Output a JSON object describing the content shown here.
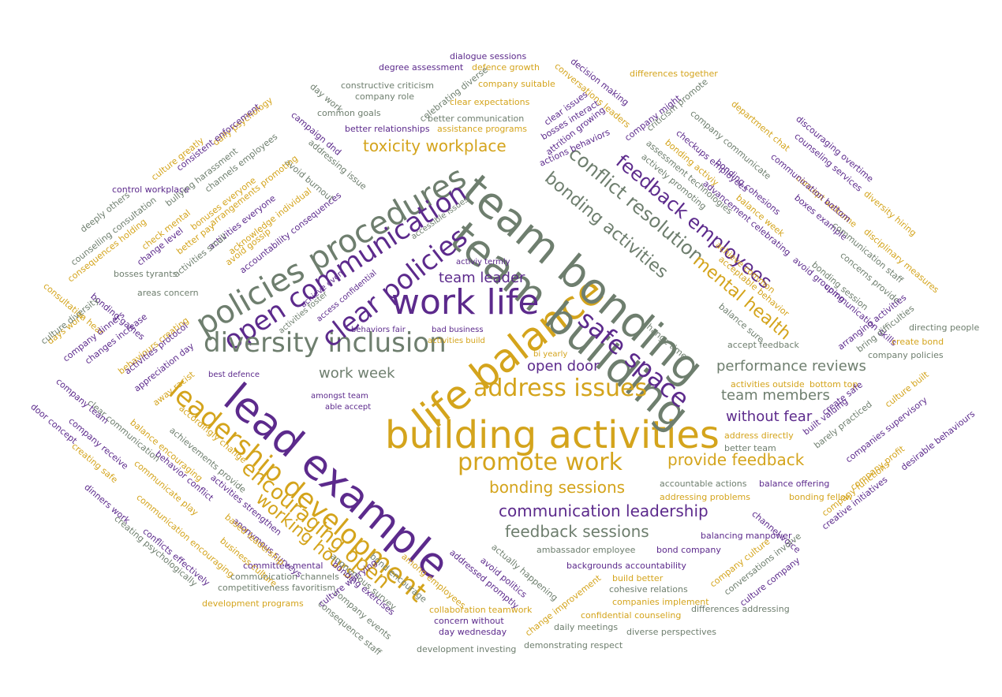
{
  "colors": {
    "gold": "#d4a41c",
    "purple": "#5c2a8c",
    "gray": "#6e7e6e"
  },
  "words": [
    {
      "text": "building activities",
      "color": "gold"
    },
    {
      "text": "lead example",
      "color": "purple"
    },
    {
      "text": "life balance",
      "color": "gold"
    },
    {
      "text": "team bonding",
      "color": "gray"
    },
    {
      "text": "team building",
      "color": "gray"
    },
    {
      "text": "work life",
      "color": "purple"
    },
    {
      "text": "leadership development",
      "color": "gold"
    },
    {
      "text": "policies procedures",
      "color": "gray"
    },
    {
      "text": "open communication",
      "color": "purple"
    },
    {
      "text": "diversity inclusion",
      "color": "gray"
    },
    {
      "text": "clear policies",
      "color": "purple"
    },
    {
      "text": "address issues",
      "color": "gold"
    },
    {
      "text": "safe space",
      "color": "purple"
    },
    {
      "text": "promote work",
      "color": "gold"
    },
    {
      "text": "encouraging open",
      "color": "gold"
    },
    {
      "text": "conflict resolution",
      "color": "gray"
    },
    {
      "text": "feedback employees",
      "color": "purple"
    },
    {
      "text": "working hours",
      "color": "gold"
    },
    {
      "text": "bonding activities",
      "color": "gray"
    },
    {
      "text": "toxicity workplace",
      "color": "gold"
    },
    {
      "text": "mental health",
      "color": "gold"
    },
    {
      "text": "performance reviews",
      "color": "gray"
    },
    {
      "text": "provide feedback",
      "color": "gold"
    },
    {
      "text": "communication leadership",
      "color": "purple"
    },
    {
      "text": "bonding sessions",
      "color": "gold"
    },
    {
      "text": "feedback sessions",
      "color": "gray"
    },
    {
      "text": "team members",
      "color": "gray"
    },
    {
      "text": "without fear",
      "color": "purple"
    },
    {
      "text": "open door",
      "color": "purple"
    },
    {
      "text": "work week",
      "color": "gray"
    },
    {
      "text": "team leader",
      "color": "purple"
    },
    {
      "text": "dialogue sessions",
      "color": "purple"
    },
    {
      "text": "degree assessment",
      "color": "purple"
    },
    {
      "text": "defence growth",
      "color": "gold"
    },
    {
      "text": "constructive criticism",
      "color": "gray"
    },
    {
      "text": "company suitable",
      "color": "gold"
    },
    {
      "text": "day work",
      "color": "gray"
    },
    {
      "text": "company role",
      "color": "gray"
    },
    {
      "text": "clear expectations",
      "color": "gold"
    },
    {
      "text": "common goals",
      "color": "gray"
    },
    {
      "text": "better communication",
      "color": "gray"
    },
    {
      "text": "better relationships",
      "color": "purple"
    },
    {
      "text": "assistance programs",
      "color": "gold"
    },
    {
      "text": "campaign dnd",
      "color": "purple"
    },
    {
      "text": "avoid burnout",
      "color": "gray"
    },
    {
      "text": "addressing issue",
      "color": "gray"
    },
    {
      "text": "celebrating diverse",
      "color": "gray"
    },
    {
      "text": "conversations leaders",
      "color": "gold"
    },
    {
      "text": "decision making",
      "color": "purple"
    },
    {
      "text": "differences together",
      "color": "gold"
    },
    {
      "text": "clear issues",
      "color": "purple"
    },
    {
      "text": "bosses interact",
      "color": "purple"
    },
    {
      "text": "attrition growing",
      "color": "purple"
    },
    {
      "text": "actions behaviors",
      "color": "purple"
    },
    {
      "text": "company might",
      "color": "purple"
    },
    {
      "text": "criticism promote",
      "color": "gray"
    },
    {
      "text": "department chat",
      "color": "gold"
    },
    {
      "text": "discouraging overtime",
      "color": "purple"
    },
    {
      "text": "counseling services",
      "color": "purple"
    },
    {
      "text": "diversity hiring",
      "color": "gold"
    },
    {
      "text": "concept welcome",
      "color": "gold"
    },
    {
      "text": "company communicate",
      "color": "gray"
    },
    {
      "text": "checkups employees",
      "color": "purple"
    },
    {
      "text": "communication bottom",
      "color": "purple"
    },
    {
      "text": "bonding activiy",
      "color": "gold"
    },
    {
      "text": "bonding cohesions",
      "color": "purple"
    },
    {
      "text": "assessment technologies",
      "color": "gray"
    },
    {
      "text": "actively promoting",
      "color": "gray"
    },
    {
      "text": "advancement celebrating",
      "color": "purple"
    },
    {
      "text": "balance week",
      "color": "gold"
    },
    {
      "text": "boxes example",
      "color": "purple"
    },
    {
      "text": "communication staff",
      "color": "gray"
    },
    {
      "text": "concerns provide",
      "color": "gray"
    },
    {
      "text": "disciplinary measures",
      "color": "gold"
    },
    {
      "text": "culture greatly",
      "color": "gold"
    },
    {
      "text": "daily psychology",
      "color": "gold"
    },
    {
      "text": "consistent enforcement",
      "color": "purple"
    },
    {
      "text": "channels employees",
      "color": "gray"
    },
    {
      "text": "control workplace",
      "color": "purple"
    },
    {
      "text": "bullying harassment",
      "color": "gray"
    },
    {
      "text": "deeply others",
      "color": "gray"
    },
    {
      "text": "counselling consultation",
      "color": "gray"
    },
    {
      "text": "check mental",
      "color": "gold"
    },
    {
      "text": "bonuses everyone",
      "color": "gold"
    },
    {
      "text": "arrangements promoting",
      "color": "gold"
    },
    {
      "text": "consequences holding",
      "color": "gold"
    },
    {
      "text": "change level",
      "color": "purple"
    },
    {
      "text": "better pay",
      "color": "gold"
    },
    {
      "text": "activities everyone",
      "color": "purple"
    },
    {
      "text": "acknowledge individual",
      "color": "gold"
    },
    {
      "text": "accountability consequences",
      "color": "purple"
    },
    {
      "text": "avoid gossip",
      "color": "gold"
    },
    {
      "text": "activities small",
      "color": "gray"
    },
    {
      "text": "bosses tyrants",
      "color": "gray"
    },
    {
      "text": "areas concern",
      "color": "gray"
    },
    {
      "text": "consultation hear",
      "color": "gold"
    },
    {
      "text": "bonding games",
      "color": "purple"
    },
    {
      "text": "days work",
      "color": "gold"
    },
    {
      "text": "culture diversity",
      "color": "gray"
    },
    {
      "text": "company dinners",
      "color": "purple"
    },
    {
      "text": "changes increase",
      "color": "purple"
    },
    {
      "text": "behaviours creating",
      "color": "gold"
    },
    {
      "text": "activities protocol",
      "color": "purple"
    },
    {
      "text": "appreciation day",
      "color": "purple"
    },
    {
      "text": "away racist",
      "color": "gold"
    },
    {
      "text": "achieve even",
      "color": "purple"
    },
    {
      "text": "access confidential",
      "color": "purple"
    },
    {
      "text": "accessible issues",
      "color": "gray"
    },
    {
      "text": "activiy termly",
      "color": "purple"
    },
    {
      "text": "activities foster",
      "color": "gray"
    },
    {
      "text": "behaviors fair",
      "color": "purple"
    },
    {
      "text": "bad business",
      "color": "purple"
    },
    {
      "text": "activities build",
      "color": "gold"
    },
    {
      "text": "bi yearly",
      "color": "gold"
    },
    {
      "text": "best defence",
      "color": "purple"
    },
    {
      "text": "amongst team",
      "color": "purple"
    },
    {
      "text": "able accept",
      "color": "purple"
    },
    {
      "text": "achieve common",
      "color": "gold"
    },
    {
      "text": "acceptable behavior",
      "color": "gold"
    },
    {
      "text": "avoid grouping",
      "color": "purple"
    },
    {
      "text": "bonding session",
      "color": "gray"
    },
    {
      "text": "communication skills",
      "color": "purple"
    },
    {
      "text": "balance sure",
      "color": "gray"
    },
    {
      "text": "change time",
      "color": "gray"
    },
    {
      "text": "accept feedback",
      "color": "gray"
    },
    {
      "text": "arranging activities",
      "color": "purple"
    },
    {
      "text": "bring difficulties",
      "color": "gray"
    },
    {
      "text": "directing people",
      "color": "gray"
    },
    {
      "text": "create bond",
      "color": "gold"
    },
    {
      "text": "company policies",
      "color": "gray"
    },
    {
      "text": "activities outside",
      "color": "gold"
    },
    {
      "text": "bottom top",
      "color": "gold"
    },
    {
      "text": "create safe",
      "color": "purple"
    },
    {
      "text": "culture built",
      "color": "gold"
    },
    {
      "text": "built valuing",
      "color": "purple"
    },
    {
      "text": "barely practiced",
      "color": "gray"
    },
    {
      "text": "companies supervisory",
      "color": "purple"
    },
    {
      "text": "desirable behaviours",
      "color": "purple"
    },
    {
      "text": "company profit",
      "color": "gold"
    },
    {
      "text": "address directly",
      "color": "gold"
    },
    {
      "text": "better team",
      "color": "gray"
    },
    {
      "text": "accountable actions",
      "color": "gray"
    },
    {
      "text": "balance offering",
      "color": "purple"
    },
    {
      "text": "addressing problems",
      "color": "gold"
    },
    {
      "text": "bonding fellow",
      "color": "gold"
    },
    {
      "text": "company functions",
      "color": "gold"
    },
    {
      "text": "creative initiatives",
      "color": "purple"
    },
    {
      "text": "channel voice",
      "color": "purple"
    },
    {
      "text": "balancing manpower",
      "color": "purple"
    },
    {
      "text": "ambassador employee",
      "color": "gray"
    },
    {
      "text": "bond company",
      "color": "purple"
    },
    {
      "text": "backgrounds accountability",
      "color": "purple"
    },
    {
      "text": "build better",
      "color": "gold"
    },
    {
      "text": "cohesive relations",
      "color": "gray"
    },
    {
      "text": "companies implement",
      "color": "gold"
    },
    {
      "text": "differences addressing",
      "color": "gray"
    },
    {
      "text": "confidential counseling",
      "color": "gold"
    },
    {
      "text": "daily meetings",
      "color": "gray"
    },
    {
      "text": "diverse perspectives",
      "color": "gray"
    },
    {
      "text": "demonstrating respect",
      "color": "gray"
    },
    {
      "text": "company culture",
      "color": "gold"
    },
    {
      "text": "conversations involve",
      "color": "gray"
    },
    {
      "text": "culture company",
      "color": "purple"
    },
    {
      "text": "change improvement",
      "color": "gold"
    },
    {
      "text": "actually happening",
      "color": "gray"
    },
    {
      "text": "avoid politics",
      "color": "purple"
    },
    {
      "text": "addressed promptly",
      "color": "purple"
    },
    {
      "text": "among employees",
      "color": "gold"
    },
    {
      "text": "bond encourage",
      "color": "gray"
    },
    {
      "text": "anonymous survey",
      "color": "gray"
    },
    {
      "text": "bonding exercises",
      "color": "purple"
    },
    {
      "text": "company events",
      "color": "gray"
    },
    {
      "text": "consequence staff",
      "color": "gray"
    },
    {
      "text": "collaboration teamwork",
      "color": "gold"
    },
    {
      "text": "concern without",
      "color": "purple"
    },
    {
      "text": "day wednesday",
      "color": "purple"
    },
    {
      "text": "development investing",
      "color": "gray"
    },
    {
      "text": "committee mental",
      "color": "purple"
    },
    {
      "text": "communication channels",
      "color": "gray"
    },
    {
      "text": "competitiveness favoritism",
      "color": "gray"
    },
    {
      "text": "development programs",
      "color": "gold"
    },
    {
      "text": "culture worrying",
      "color": "purple"
    },
    {
      "text": "accordingly change",
      "color": "gold"
    },
    {
      "text": "achievements provide",
      "color": "gray"
    },
    {
      "text": "activities strengthen",
      "color": "purple"
    },
    {
      "text": "anonymous surveys",
      "color": "purple"
    },
    {
      "text": "based leadership",
      "color": "gold"
    },
    {
      "text": "business culture",
      "color": "gold"
    },
    {
      "text": "balance encouraging",
      "color": "gold"
    },
    {
      "text": "behavior conflict",
      "color": "purple"
    },
    {
      "text": "communicate play",
      "color": "gold"
    },
    {
      "text": "communication encouraging",
      "color": "gold"
    },
    {
      "text": "conflicts effectively",
      "color": "purple"
    },
    {
      "text": "creating psychologically",
      "color": "gray"
    },
    {
      "text": "dinners work",
      "color": "purple"
    },
    {
      "text": "creating safe",
      "color": "gold"
    },
    {
      "text": "company receive",
      "color": "purple"
    },
    {
      "text": "clear communication",
      "color": "gray"
    },
    {
      "text": "door concept",
      "color": "purple"
    },
    {
      "text": "company team",
      "color": "purple"
    }
  ]
}
